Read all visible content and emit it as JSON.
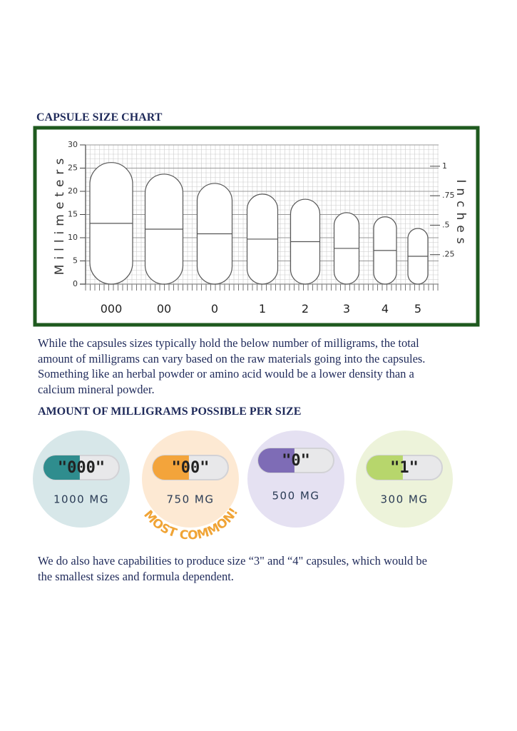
{
  "title": "CAPSULE SIZE CHART",
  "chart_data": {
    "type": "capsule",
    "categories": [
      "000",
      "00",
      "0",
      "1",
      "2",
      "3",
      "4",
      "5"
    ],
    "values": [
      26.2,
      23.7,
      21.7,
      19.4,
      18.3,
      15.4,
      14.5,
      12
    ],
    "ylabel": "Millimeters",
    "y2label": "Inches",
    "ylim": [
      0,
      30
    ],
    "yticks": [
      0,
      5,
      10,
      15,
      20,
      25,
      30
    ],
    "y2lim": [
      0,
      1.181
    ],
    "y2ticks": [
      {
        "value": 0.25,
        "label": ".25"
      },
      {
        "value": 0.5,
        "label": ".5"
      },
      {
        "value": 0.75,
        "label": ".75"
      },
      1
    ],
    "grid": true,
    "color": "#ffffff"
  },
  "paragraph_1": "While the capsules sizes typically hold the below number of milligrams, the total amount of milligrams can vary based on the raw materials going into the capsules. Something like an herbal powder or amino acid would be a lower density than a calcium mineral powder.",
  "section_title": "AMOUNT OF MILLIGRAMS POSSIBLE PER SIZE",
  "sizes": [
    {
      "label": "\"000\"",
      "amount": "1000 MG"
    },
    {
      "label": "\"00\"",
      "amount": "750 MG"
    },
    {
      "label": "\"0\"",
      "amount": "500 MG"
    },
    {
      "label": "\"1\"",
      "amount": "300 MG"
    }
  ],
  "badge": "MOST COMMON!",
  "paragraph_2": "We do also have capabilities to produce size “3\" and “4\" capsules, which would be the smallest sizes and formula dependent."
}
